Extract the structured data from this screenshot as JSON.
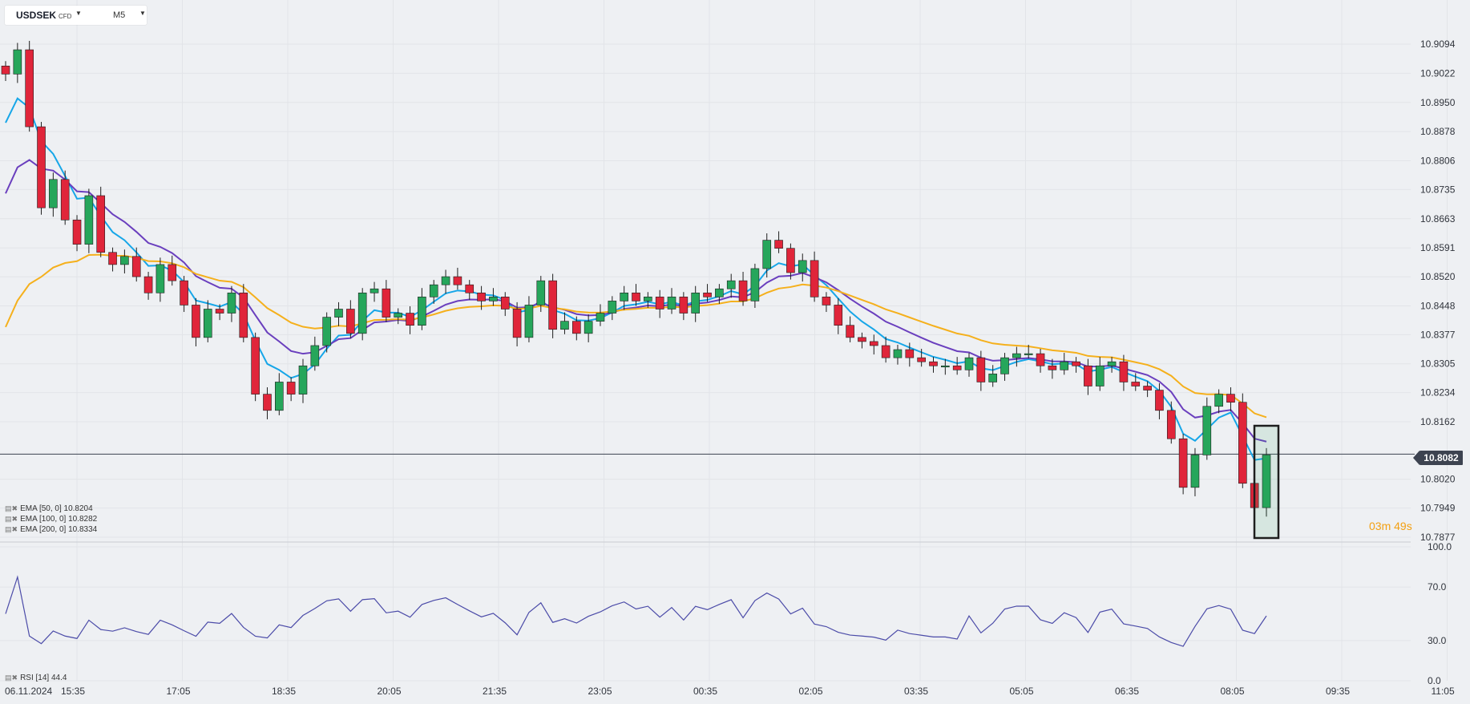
{
  "toolbar": {
    "symbol": "USDSEK",
    "type": "CFD",
    "timeframe": "M5"
  },
  "last_price": "10.8082",
  "countdown": {
    "minutes": "03",
    "m": "m",
    "seconds": "49",
    "s": "s"
  },
  "indicators": [
    {
      "label": "EMA [50, 0] 10.8204",
      "color": "#16a6e8"
    },
    {
      "label": "EMA [100, 0] 10.8282",
      "color": "#6a3fbe"
    },
    {
      "label": "EMA [200, 0] 10.8334",
      "color": "#f5b01c"
    }
  ],
  "rsi_label": "RSI [14] 44.4",
  "colors": {
    "up": "#26a65b",
    "down": "#e0253a",
    "rsi": "#4b4ba8",
    "background": "#eef0f3"
  },
  "chart_data": {
    "type": "candlestick",
    "x_ticks": [
      "06.11.2024",
      "15:35",
      "17:05",
      "18:35",
      "20:05",
      "21:35",
      "23:05",
      "00:35",
      "02:05",
      "03:35",
      "05:05",
      "06:35",
      "08:05",
      "09:35",
      "11:05"
    ],
    "y_ticks": [
      "10.9094",
      "10.9022",
      "10.8950",
      "10.8878",
      "10.8806",
      "10.8735",
      "10.8663",
      "10.8591",
      "10.8520",
      "10.8448",
      "10.8377",
      "10.8305",
      "10.8234",
      "10.8162",
      "10.8020",
      "10.7949",
      "10.7877"
    ],
    "ylim": [
      10.7877,
      10.9094
    ],
    "rsi_ticks": [
      "100.0",
      "70.0",
      "30.0",
      "0.0"
    ],
    "rsi_ylim": [
      0,
      100
    ],
    "close_series": [
      {
        "t": "15:30",
        "close": 10.902
      },
      {
        "t": "15:40",
        "close": 10.908
      },
      {
        "t": "15:50",
        "close": 10.889
      },
      {
        "t": "16:00",
        "close": 10.869
      },
      {
        "t": "16:10",
        "close": 10.876
      },
      {
        "t": "16:20",
        "close": 10.866
      },
      {
        "t": "16:30",
        "close": 10.86
      },
      {
        "t": "16:40",
        "close": 10.872
      },
      {
        "t": "16:50",
        "close": 10.858
      },
      {
        "t": "17:00",
        "close": 10.855
      },
      {
        "t": "17:10",
        "close": 10.857
      },
      {
        "t": "17:20",
        "close": 10.852
      },
      {
        "t": "17:30",
        "close": 10.848
      },
      {
        "t": "17:40",
        "close": 10.855
      },
      {
        "t": "17:50",
        "close": 10.851
      },
      {
        "t": "18:00",
        "close": 10.845
      },
      {
        "t": "18:10",
        "close": 10.837
      },
      {
        "t": "18:20",
        "close": 10.844
      },
      {
        "t": "18:30",
        "close": 10.843
      },
      {
        "t": "18:40",
        "close": 10.848
      },
      {
        "t": "18:50",
        "close": 10.837
      },
      {
        "t": "19:00",
        "close": 10.823
      },
      {
        "t": "19:10",
        "close": 10.819
      },
      {
        "t": "19:20",
        "close": 10.826
      },
      {
        "t": "19:30",
        "close": 10.823
      },
      {
        "t": "19:40",
        "close": 10.83
      },
      {
        "t": "19:50",
        "close": 10.835
      },
      {
        "t": "20:00",
        "close": 10.842
      },
      {
        "t": "20:10",
        "close": 10.844
      },
      {
        "t": "20:20",
        "close": 10.838
      },
      {
        "t": "20:30",
        "close": 10.848
      },
      {
        "t": "20:40",
        "close": 10.849
      },
      {
        "t": "20:50",
        "close": 10.842
      },
      {
        "t": "21:00",
        "close": 10.843
      },
      {
        "t": "21:10",
        "close": 10.84
      },
      {
        "t": "21:20",
        "close": 10.847
      },
      {
        "t": "21:30",
        "close": 10.85
      },
      {
        "t": "21:40",
        "close": 10.852
      },
      {
        "t": "21:50",
        "close": 10.85
      },
      {
        "t": "22:00",
        "close": 10.848
      },
      {
        "t": "22:10",
        "close": 10.846
      },
      {
        "t": "22:20",
        "close": 10.847
      },
      {
        "t": "22:30",
        "close": 10.844
      },
      {
        "t": "22:40",
        "close": 10.837
      },
      {
        "t": "22:50",
        "close": 10.845
      },
      {
        "t": "23:00",
        "close": 10.851
      },
      {
        "t": "23:10",
        "close": 10.839
      },
      {
        "t": "23:20",
        "close": 10.841
      },
      {
        "t": "23:30",
        "close": 10.838
      },
      {
        "t": "23:40",
        "close": 10.841
      },
      {
        "t": "23:50",
        "close": 10.843
      },
      {
        "t": "00:00",
        "close": 10.846
      },
      {
        "t": "00:10",
        "close": 10.848
      },
      {
        "t": "00:20",
        "close": 10.846
      },
      {
        "t": "00:30",
        "close": 10.847
      },
      {
        "t": "00:40",
        "close": 10.844
      },
      {
        "t": "00:50",
        "close": 10.847
      },
      {
        "t": "01:00",
        "close": 10.843
      },
      {
        "t": "01:10",
        "close": 10.848
      },
      {
        "t": "01:20",
        "close": 10.847
      },
      {
        "t": "01:30",
        "close": 10.849
      },
      {
        "t": "01:40",
        "close": 10.851
      },
      {
        "t": "01:50",
        "close": 10.846
      },
      {
        "t": "02:00",
        "close": 10.854
      },
      {
        "t": "02:10",
        "close": 10.861
      },
      {
        "t": "02:20",
        "close": 10.859
      },
      {
        "t": "02:30",
        "close": 10.853
      },
      {
        "t": "02:40",
        "close": 10.856
      },
      {
        "t": "02:50",
        "close": 10.847
      },
      {
        "t": "03:00",
        "close": 10.845
      },
      {
        "t": "03:10",
        "close": 10.84
      },
      {
        "t": "03:20",
        "close": 10.837
      },
      {
        "t": "03:30",
        "close": 10.836
      },
      {
        "t": "03:40",
        "close": 10.835
      },
      {
        "t": "03:50",
        "close": 10.832
      },
      {
        "t": "04:00",
        "close": 10.834
      },
      {
        "t": "04:10",
        "close": 10.832
      },
      {
        "t": "04:20",
        "close": 10.831
      },
      {
        "t": "04:30",
        "close": 10.83
      },
      {
        "t": "04:40",
        "close": 10.83
      },
      {
        "t": "04:50",
        "close": 10.829
      },
      {
        "t": "05:00",
        "close": 10.832
      },
      {
        "t": "05:10",
        "close": 10.826
      },
      {
        "t": "05:20",
        "close": 10.828
      },
      {
        "t": "05:30",
        "close": 10.832
      },
      {
        "t": "05:40",
        "close": 10.833
      },
      {
        "t": "05:50",
        "close": 10.833
      },
      {
        "t": "06:00",
        "close": 10.83
      },
      {
        "t": "06:10",
        "close": 10.829
      },
      {
        "t": "06:20",
        "close": 10.831
      },
      {
        "t": "06:30",
        "close": 10.83
      },
      {
        "t": "06:40",
        "close": 10.825
      },
      {
        "t": "06:50",
        "close": 10.83
      },
      {
        "t": "07:00",
        "close": 10.831
      },
      {
        "t": "07:10",
        "close": 10.826
      },
      {
        "t": "07:20",
        "close": 10.825
      },
      {
        "t": "07:30",
        "close": 10.824
      },
      {
        "t": "07:40",
        "close": 10.819
      },
      {
        "t": "07:50",
        "close": 10.812
      },
      {
        "t": "08:00",
        "close": 10.8
      },
      {
        "t": "08:10",
        "close": 10.808
      },
      {
        "t": "08:20",
        "close": 10.82
      },
      {
        "t": "08:30",
        "close": 10.823
      },
      {
        "t": "08:40",
        "close": 10.821
      },
      {
        "t": "08:50",
        "close": 10.801
      },
      {
        "t": "09:00",
        "close": 10.795
      },
      {
        "t": "09:05",
        "close": 10.808
      }
    ],
    "ema_50_last": 10.8204,
    "ema_100_last": 10.8282,
    "ema_200_last": 10.8334,
    "rsi_last": 44.4
  }
}
